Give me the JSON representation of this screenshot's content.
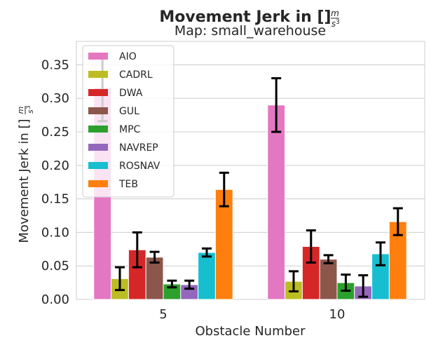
{
  "chart_data": {
    "type": "bar",
    "title": "Movement Jerk in [",
    "title_unit_num": "m",
    "title_unit_den": "s",
    "title_unit_exp": "3",
    "title_suffix": "]",
    "subtitle": "Map: small_warehouse",
    "xlabel": "Obstacle Number",
    "ylabel": "Movement Jerk in [",
    "ylabel_unit_num": "m",
    "ylabel_unit_den": "s",
    "ylabel_unit_exp": "3",
    "ylabel_suffix": "]",
    "categories": [
      "5",
      "10"
    ],
    "ylim": [
      0,
      0.385
    ],
    "yticks": [
      0.0,
      0.05,
      0.1,
      0.15,
      0.2,
      0.25,
      0.3,
      0.35
    ],
    "ytick_labels": [
      "0.00",
      "0.05",
      "0.10",
      "0.15",
      "0.20",
      "0.25",
      "0.30",
      "0.35"
    ],
    "grid": true,
    "legend_position": "top-left",
    "series": [
      {
        "name": "AIO",
        "color": "#e377c2",
        "values": [
          0.316,
          0.29
        ],
        "errors": [
          0.05,
          0.04
        ]
      },
      {
        "name": "CADRL",
        "color": "#bcbd22",
        "values": [
          0.031,
          0.027
        ],
        "errors": [
          0.017,
          0.015
        ]
      },
      {
        "name": "DWA",
        "color": "#d62728",
        "values": [
          0.074,
          0.079
        ],
        "errors": [
          0.026,
          0.024
        ]
      },
      {
        "name": "GUL",
        "color": "#8c564b",
        "values": [
          0.063,
          0.06
        ],
        "errors": [
          0.008,
          0.006
        ]
      },
      {
        "name": "MPC",
        "color": "#2ca02c",
        "values": [
          0.023,
          0.025
        ],
        "errors": [
          0.005,
          0.012
        ]
      },
      {
        "name": "NAVREP",
        "color": "#9467bd",
        "values": [
          0.022,
          0.02
        ],
        "errors": [
          0.006,
          0.016
        ]
      },
      {
        "name": "ROSNAV",
        "color": "#17becf",
        "values": [
          0.07,
          0.068
        ],
        "errors": [
          0.006,
          0.017
        ]
      },
      {
        "name": "TEB",
        "color": "#ff7f0e",
        "values": [
          0.164,
          0.116
        ],
        "errors": [
          0.025,
          0.02
        ]
      }
    ]
  }
}
